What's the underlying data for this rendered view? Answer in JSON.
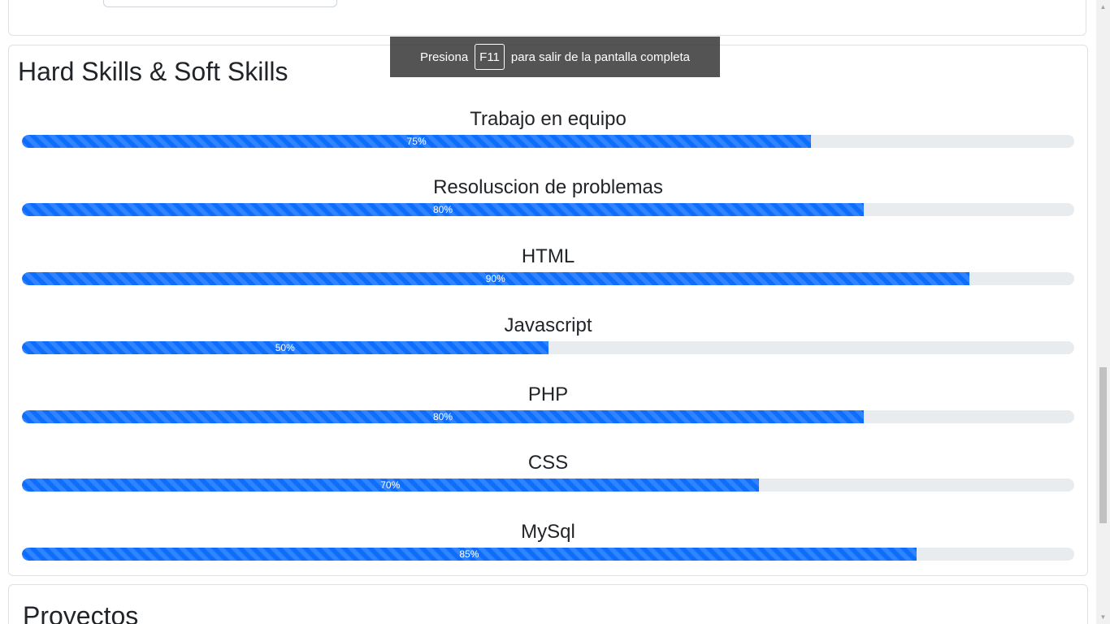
{
  "skills_section": {
    "title": "Hard Skills & Soft Skills",
    "skills": [
      {
        "name": "Trabajo en equipo",
        "percent": 75,
        "label": "75%"
      },
      {
        "name": "Resoluscion de problemas",
        "percent": 80,
        "label": "80%"
      },
      {
        "name": "HTML",
        "percent": 90,
        "label": "90%"
      },
      {
        "name": "Javascript",
        "percent": 50,
        "label": "50%"
      },
      {
        "name": "PHP",
        "percent": 80,
        "label": "80%"
      },
      {
        "name": "CSS",
        "percent": 70,
        "label": "70%"
      },
      {
        "name": "MySql",
        "percent": 85,
        "label": "85%"
      }
    ]
  },
  "projects_section": {
    "title": "Proyectos"
  },
  "fullscreen_toast": {
    "prefix": "Presiona",
    "key": "F11",
    "suffix": "para salir de la pantalla completa"
  },
  "colors": {
    "progress_bar": "#0d6efd",
    "progress_track": "#e9ecef",
    "border": "#dee2e6"
  }
}
